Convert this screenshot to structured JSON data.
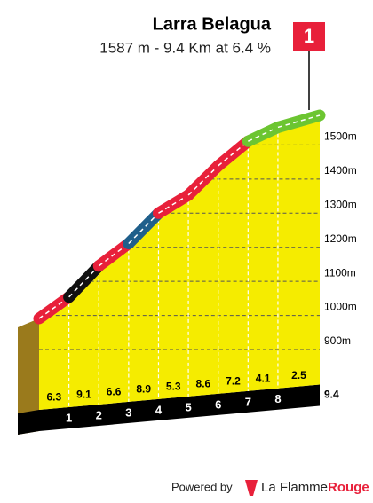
{
  "chart_data": {
    "type": "profile",
    "title": "Larra Belagua",
    "subtitle": "1587 m - 9.4 Km at 6.4 %",
    "flag": "1",
    "x": [
      0,
      1,
      2,
      3,
      4,
      5,
      6,
      7,
      8,
      9.4
    ],
    "values": [
      991,
      1054,
      1145,
      1211,
      1300,
      1353,
      1439,
      1511,
      1552,
      1587
    ],
    "gradients": [
      6.3,
      9.1,
      6.6,
      8.9,
      5.3,
      8.6,
      7.2,
      4.1,
      2.5
    ],
    "segment_colors": [
      "#e8203a",
      "#111111",
      "#e8203a",
      "#1f5f8b",
      "#e8203a",
      "#e8203a",
      "#e8203a",
      "#6cc531",
      "#6cc531"
    ],
    "fill_color": "#f5ec00",
    "xlim": [
      0,
      9.4
    ],
    "xticks": [
      1,
      2,
      3,
      4,
      5,
      6,
      7,
      8,
      9.4
    ],
    "ylim": [
      900,
      1600
    ],
    "yticks": [
      {
        "value": 900,
        "label": "900m"
      },
      {
        "value": 1000,
        "label": "1000m"
      },
      {
        "value": 1100,
        "label": "1100m"
      },
      {
        "value": 1200,
        "label": "1200m"
      },
      {
        "value": 1300,
        "label": "1300m"
      },
      {
        "value": 1400,
        "label": "1400m"
      },
      {
        "value": 1500,
        "label": "1500m"
      }
    ],
    "grid": true
  },
  "footer": {
    "powered": "Powered by",
    "brand": "La Flamme",
    "brand_bold": "Rouge"
  }
}
